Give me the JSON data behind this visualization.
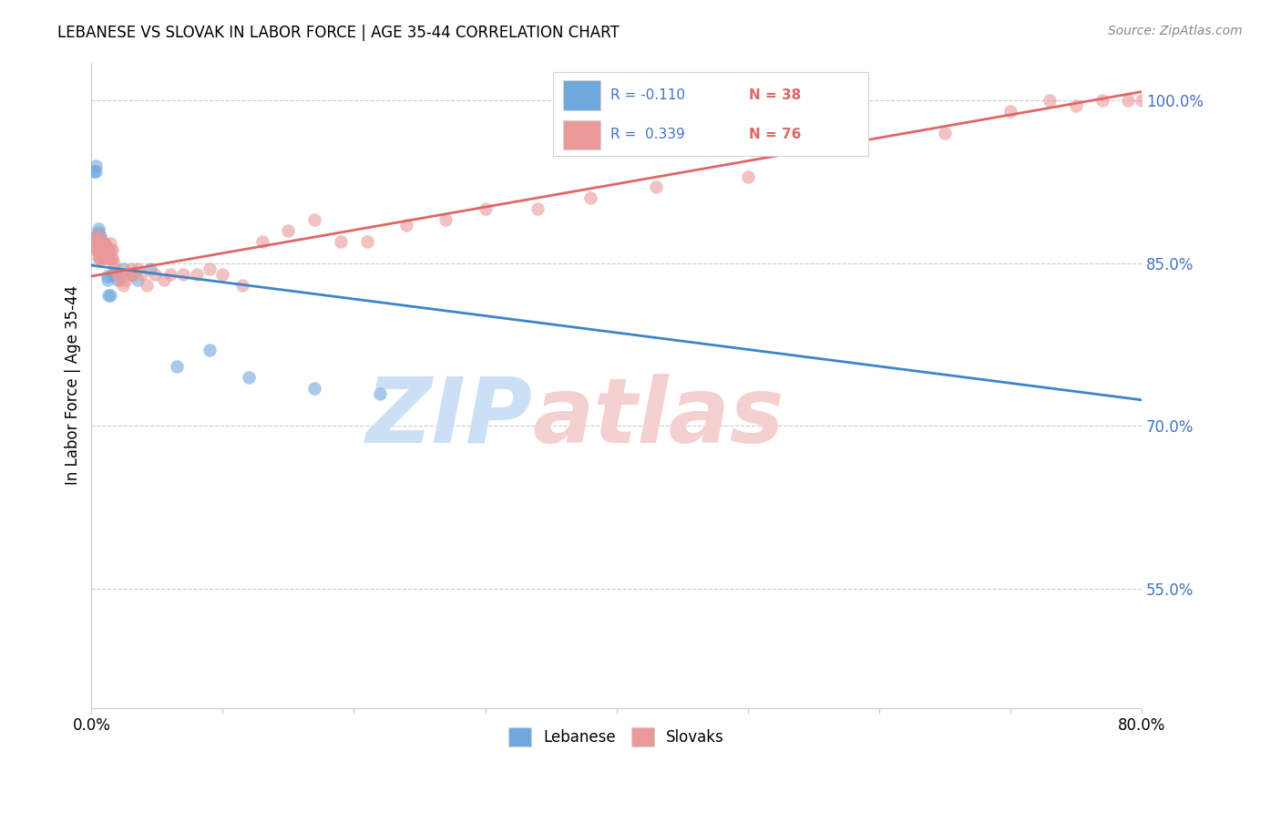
{
  "title": "LEBANESE VS SLOVAK IN LABOR FORCE | AGE 35-44 CORRELATION CHART",
  "source": "Source: ZipAtlas.com",
  "ylabel": "In Labor Force | Age 35-44",
  "xlim": [
    0.0,
    0.8
  ],
  "ylim": [
    0.44,
    1.035
  ],
  "xticks": [
    0.0,
    0.1,
    0.2,
    0.3,
    0.4,
    0.5,
    0.6,
    0.7,
    0.8
  ],
  "xticklabels": [
    "0.0%",
    "",
    "",
    "",
    "",
    "",
    "",
    "",
    "80.0%"
  ],
  "yticks_right": [
    0.55,
    0.7,
    0.85,
    1.0
  ],
  "ytick_labels_right": [
    "55.0%",
    "70.0%",
    "85.0%",
    "100.0%"
  ],
  "legend_R_blue": "-0.110",
  "legend_N_blue": "38",
  "legend_R_pink": "0.339",
  "legend_N_pink": "76",
  "blue_color": "#6fa8dc",
  "pink_color": "#ea9999",
  "blue_line_color": "#3d85c8",
  "pink_line_color": "#e06666",
  "watermark_blue": "ZIP",
  "watermark_pink": "atlas",
  "watermark_color_blue": "#cce0f5",
  "watermark_color_pink": "#f5d0d0",
  "blue_x": [
    0.002,
    0.003,
    0.003,
    0.004,
    0.004,
    0.005,
    0.005,
    0.005,
    0.006,
    0.006,
    0.006,
    0.007,
    0.007,
    0.007,
    0.007,
    0.008,
    0.008,
    0.009,
    0.009,
    0.01,
    0.01,
    0.011,
    0.012,
    0.012,
    0.013,
    0.014,
    0.016,
    0.018,
    0.02,
    0.025,
    0.03,
    0.035,
    0.045,
    0.065,
    0.09,
    0.12,
    0.17,
    0.22
  ],
  "blue_y": [
    0.935,
    0.935,
    0.94,
    0.865,
    0.875,
    0.875,
    0.878,
    0.882,
    0.865,
    0.87,
    0.875,
    0.862,
    0.866,
    0.87,
    0.875,
    0.862,
    0.868,
    0.856,
    0.862,
    0.862,
    0.868,
    0.858,
    0.835,
    0.838,
    0.82,
    0.82,
    0.84,
    0.84,
    0.835,
    0.845,
    0.84,
    0.835,
    0.845,
    0.755,
    0.77,
    0.745,
    0.735,
    0.73
  ],
  "pink_x": [
    0.002,
    0.003,
    0.003,
    0.004,
    0.004,
    0.004,
    0.005,
    0.005,
    0.005,
    0.006,
    0.006,
    0.006,
    0.006,
    0.007,
    0.007,
    0.007,
    0.008,
    0.008,
    0.008,
    0.009,
    0.009,
    0.009,
    0.01,
    0.01,
    0.01,
    0.011,
    0.011,
    0.012,
    0.012,
    0.013,
    0.013,
    0.014,
    0.015,
    0.015,
    0.016,
    0.016,
    0.017,
    0.018,
    0.02,
    0.022,
    0.024,
    0.026,
    0.028,
    0.03,
    0.032,
    0.035,
    0.038,
    0.042,
    0.048,
    0.055,
    0.06,
    0.07,
    0.08,
    0.09,
    0.1,
    0.115,
    0.13,
    0.15,
    0.17,
    0.19,
    0.21,
    0.24,
    0.27,
    0.3,
    0.34,
    0.38,
    0.43,
    0.5,
    0.58,
    0.65,
    0.7,
    0.73,
    0.75,
    0.77,
    0.79,
    0.8
  ],
  "pink_y": [
    0.87,
    0.862,
    0.868,
    0.862,
    0.868,
    0.875,
    0.855,
    0.862,
    0.868,
    0.855,
    0.862,
    0.868,
    0.875,
    0.855,
    0.862,
    0.868,
    0.855,
    0.862,
    0.868,
    0.855,
    0.862,
    0.868,
    0.855,
    0.862,
    0.868,
    0.855,
    0.862,
    0.855,
    0.862,
    0.855,
    0.862,
    0.868,
    0.855,
    0.862,
    0.855,
    0.862,
    0.85,
    0.845,
    0.84,
    0.835,
    0.83,
    0.835,
    0.84,
    0.845,
    0.84,
    0.845,
    0.84,
    0.83,
    0.84,
    0.835,
    0.84,
    0.84,
    0.84,
    0.845,
    0.84,
    0.83,
    0.87,
    0.88,
    0.89,
    0.87,
    0.87,
    0.885,
    0.89,
    0.9,
    0.9,
    0.91,
    0.92,
    0.93,
    0.96,
    0.97,
    0.99,
    1.0,
    0.995,
    1.0,
    1.0,
    1.0
  ]
}
